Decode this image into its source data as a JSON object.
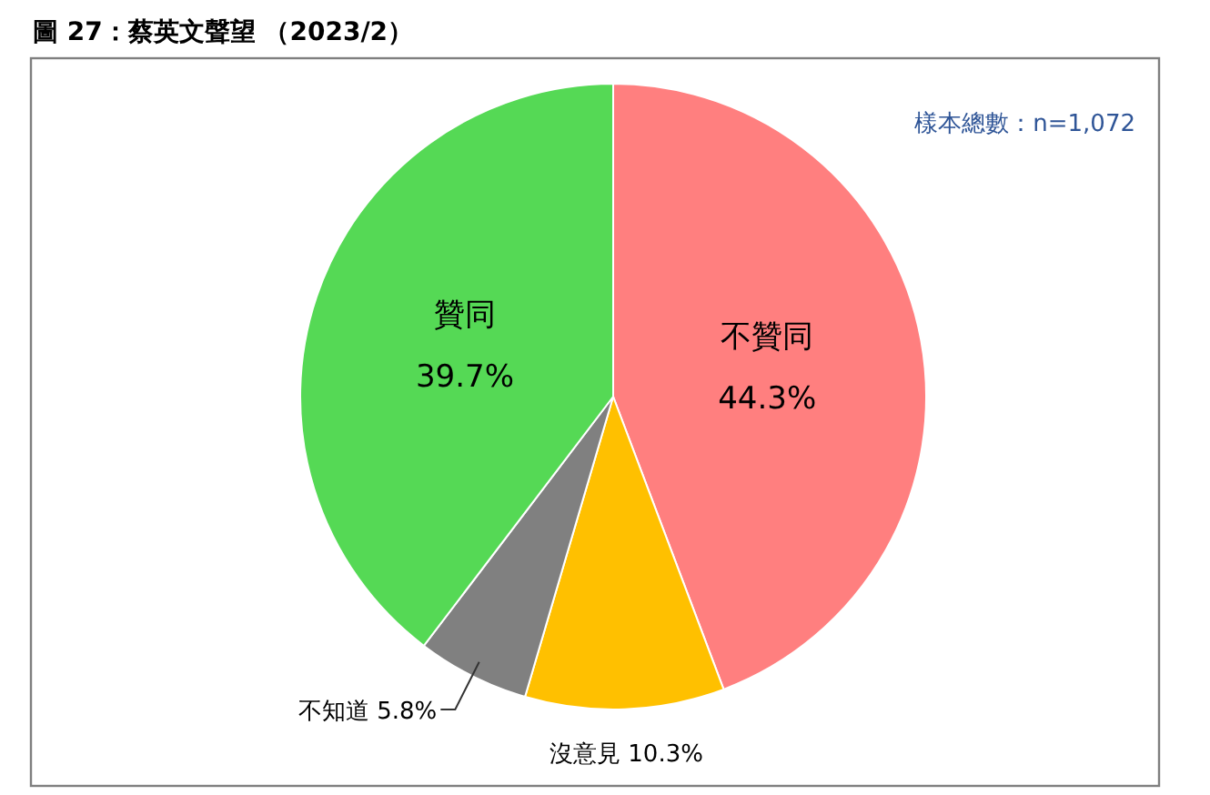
{
  "chart_data": {
    "type": "pie",
    "title": "圖 27：蔡英文聲望 （2023/2）",
    "categories": [
      "不贊同",
      "沒意見",
      "不知道",
      "贊同"
    ],
    "values": [
      44.3,
      10.3,
      5.8,
      39.7
    ],
    "colors": [
      "#ff7f7f",
      "#ffc000",
      "#808080",
      "#55d955"
    ],
    "value_labels": [
      "44.3%",
      "10.3%",
      "5.8%",
      "39.7%"
    ],
    "annotations": [
      "樣本總數：n=1,072"
    ]
  }
}
